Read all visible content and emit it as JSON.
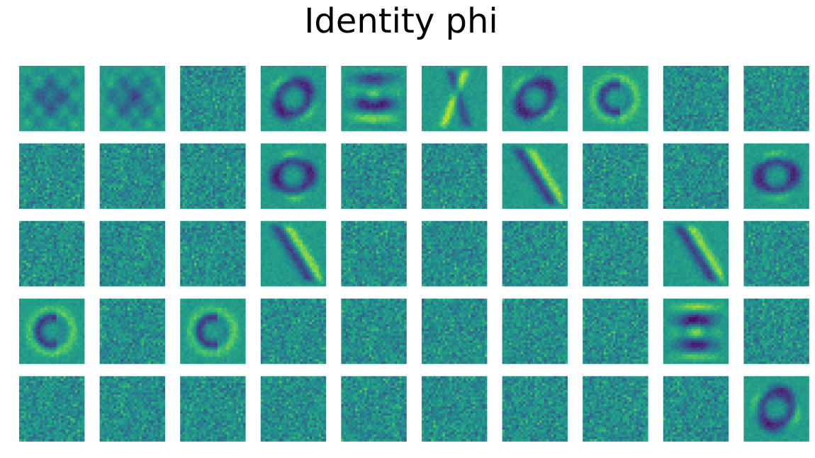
{
  "chart_data": {
    "type": "heatmap",
    "title": "Identity phi",
    "rows": 5,
    "cols": 10,
    "image_size": [
      28,
      28
    ],
    "colormap": "viridis",
    "axes_visible": false,
    "structured_cells": [
      {
        "row": 0,
        "col": 0,
        "pattern": "blob"
      },
      {
        "row": 0,
        "col": 1,
        "pattern": "blob"
      },
      {
        "row": 0,
        "col": 3,
        "pattern": "ring"
      },
      {
        "row": 0,
        "col": 4,
        "pattern": "strokes"
      },
      {
        "row": 0,
        "col": 5,
        "pattern": "cross"
      },
      {
        "row": 0,
        "col": 6,
        "pattern": "ring"
      },
      {
        "row": 0,
        "col": 7,
        "pattern": "arc"
      },
      {
        "row": 1,
        "col": 3,
        "pattern": "ring"
      },
      {
        "row": 1,
        "col": 6,
        "pattern": "stroke"
      },
      {
        "row": 1,
        "col": 9,
        "pattern": "ring"
      },
      {
        "row": 2,
        "col": 3,
        "pattern": "stroke"
      },
      {
        "row": 2,
        "col": 8,
        "pattern": "stroke"
      },
      {
        "row": 3,
        "col": 0,
        "pattern": "arc"
      },
      {
        "row": 3,
        "col": 2,
        "pattern": "arc"
      },
      {
        "row": 3,
        "col": 8,
        "pattern": "strokes"
      },
      {
        "row": 4,
        "col": 9,
        "pattern": "ring"
      }
    ]
  }
}
